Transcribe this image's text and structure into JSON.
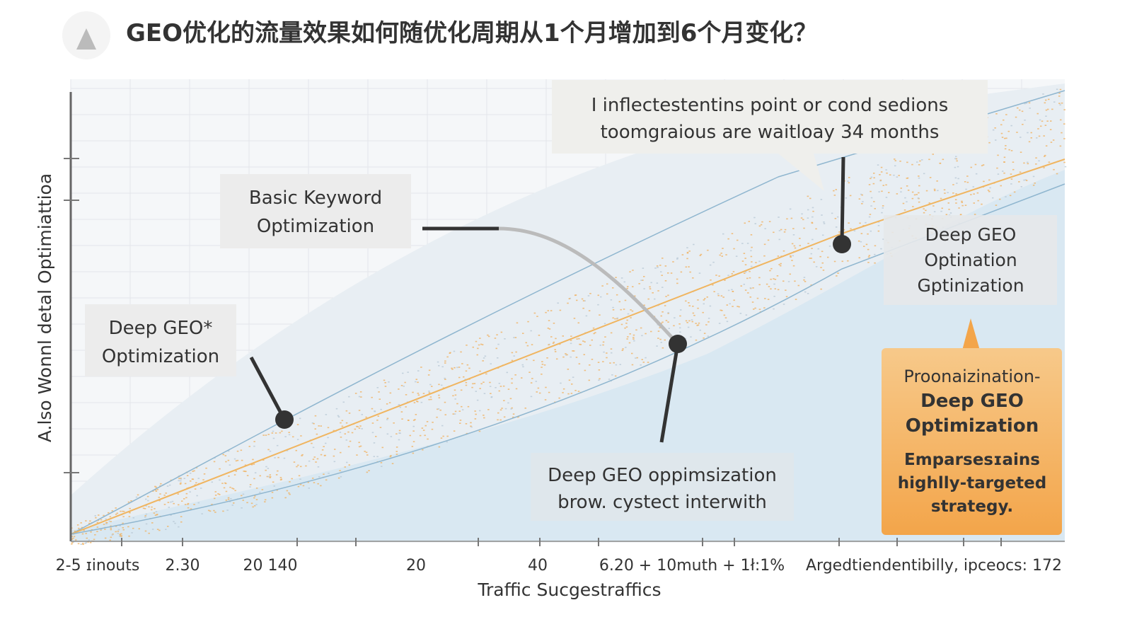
{
  "header": {
    "title": "GEO优化的流量效果如何随优化周期从1个月增加到6个月变化？"
  },
  "axes": {
    "x_label": "Traffic Sucgestraffics",
    "y_label": "A.lso Wonnl detal Optimiattioa",
    "x_tick_labels": [
      "2-5 ɪinouts",
      "2.30",
      "20 140",
      "20",
      "40",
      "6.20 + 10muth + 1ł:1%",
      "Argedtiendentibilly, ipceocs: 172"
    ]
  },
  "annotations": [
    {
      "lines": [
        "I inflectestentins point or cond sedions",
        "toomgraious are waitloay 34 months"
      ]
    },
    {
      "lines": [
        "Basic Keyword",
        "Optimization"
      ]
    },
    {
      "lines": [
        "Deep GEO*",
        "Optimization"
      ]
    },
    {
      "lines": [
        "Deep GEO",
        "Optination",
        "Gptinization"
      ]
    },
    {
      "lines": [
        "Deep GEO oppimsization",
        "brow. cystect interwith"
      ]
    },
    {
      "lines": [
        "Proonaizination-",
        "Deep GEO",
        "Optimization"
      ],
      "detail": [
        "Emparsesɪains",
        "highlly-targeted",
        "strategy."
      ]
    }
  ]
}
